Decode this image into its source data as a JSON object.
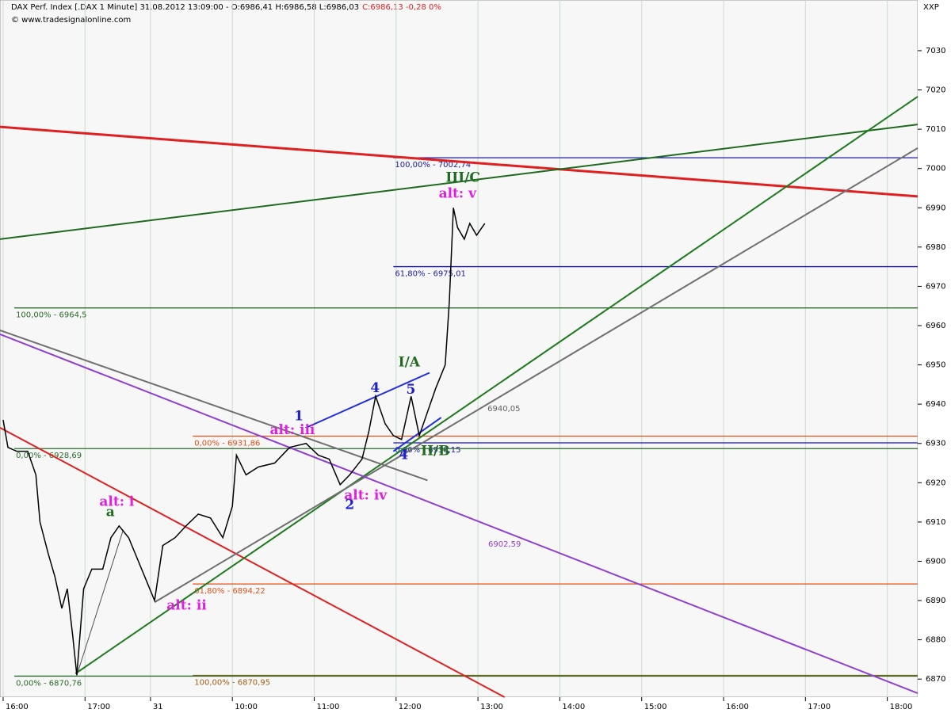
{
  "chart_data": {
    "type": "line",
    "title": "DAX Perf. Index [.DAX 1 Minute] 31.08.2012 13:09:00 - O:6986,41 H:6986,58 L:6986,03",
    "quote_change": "C:6986,13 -0,28 0%",
    "source": "© www.tradesignalonline.com",
    "axis_code": "XXP",
    "color": "#000000",
    "x": [
      0,
      3.5,
      10,
      18,
      24,
      27,
      33,
      38,
      43,
      47,
      51,
      54,
      59,
      65,
      73,
      79,
      85,
      92,
      111,
      117,
      126,
      134,
      143,
      152,
      161,
      168,
      171,
      178,
      187,
      199,
      210,
      222,
      231,
      239,
      247,
      254,
      263,
      268,
      273,
      280,
      286,
      292,
      299,
      305,
      311,
      317,
      324,
      327,
      330,
      333,
      338,
      342,
      347,
      353
    ],
    "values": [
      6936,
      6929,
      6928,
      6928,
      6922,
      6910,
      6902,
      6896,
      6888,
      6893,
      6881,
      6871,
      6893,
      6898,
      6898,
      6906,
      6909,
      6906,
      6890,
      6904,
      6906,
      6909,
      6912,
      6911,
      6906,
      6914,
      6927,
      6922,
      6924,
      6925,
      6929,
      6930,
      6927,
      6926,
      6919.5,
      6922,
      6926,
      6933,
      6942,
      6935,
      6932,
      6931,
      6942,
      6932,
      6938,
      6944,
      6950,
      6966,
      6990,
      6985,
      6982,
      6986,
      6983,
      6986
    ],
    "xlim": [
      -2.3,
      670.3
    ],
    "ylim": [
      6865.4,
      7042.9
    ],
    "xticks": [
      {
        "value": 0,
        "label": "16:00"
      },
      {
        "value": 60,
        "label": "17:00"
      },
      {
        "value": 108,
        "label": "31"
      },
      {
        "value": 168,
        "label": "10:00"
      },
      {
        "value": 228,
        "label": "11:00"
      },
      {
        "value": 288,
        "label": "12:00"
      },
      {
        "value": 348,
        "label": "13:00"
      },
      {
        "value": 408,
        "label": "14:00"
      },
      {
        "value": 468,
        "label": "15:00"
      },
      {
        "value": 528,
        "label": "16:00"
      },
      {
        "value": 588,
        "label": "17:00"
      },
      {
        "value": 648,
        "label": "18:00"
      }
    ],
    "yticks": [
      6870,
      6880,
      6890,
      6900,
      6910,
      6920,
      6930,
      6940,
      6950,
      6960,
      6970,
      6980,
      6990,
      7000,
      7010,
      7020,
      7030
    ],
    "grid": true,
    "levels": [
      {
        "label": "100,00% - 7002,74",
        "value": 7002.74,
        "start": 286,
        "color": "#1a1aa0"
      },
      {
        "label": "61,80% - 6975,01",
        "value": 6975.01,
        "start": 286,
        "color": "#1a1aa0"
      },
      {
        "label": "100,00% - 6964,5",
        "value": 6964.5,
        "start": 8.2,
        "color": "#2a6a2a"
      },
      {
        "label": "0,00% - 6931,86",
        "value": 6931.86,
        "start": 139,
        "color": "#e0501a"
      },
      {
        "label": "0,00% - 6930,15",
        "value": 6930.15,
        "start": 286,
        "color": "#1a1aa0"
      },
      {
        "label": "0,00% - 6928,69",
        "value": 6928.69,
        "start": 8.2,
        "color": "#2a6a2a"
      },
      {
        "label": "61,80% - 6894,22",
        "value": 6894.22,
        "start": 139,
        "color": "#e0501a"
      },
      {
        "label": "100,00% - 6870,95",
        "value": 6870.95,
        "start": 139,
        "color": "#a0601a"
      },
      {
        "label": "0,00% - 6870,76",
        "value": 6870.76,
        "start": 8.2,
        "color": "#2a6a2a"
      }
    ],
    "trendlines": [
      {
        "x": [
          -2.3,
          670.3
        ],
        "values": [
          7010.6,
          6992.9
        ],
        "color": "#e02020"
      },
      {
        "x": [
          -2.3,
          367.5
        ],
        "values": [
          6934.0,
          6865.4
        ],
        "color": "#e02020"
      },
      {
        "x": [
          -2.3,
          670.3
        ],
        "values": [
          6982.0,
          7011.2
        ],
        "color": "#1e6a1e"
      },
      {
        "x": [
          53,
          670.3
        ],
        "values": [
          6871.4,
          7018.3
        ],
        "color": "#1e7a1e"
      },
      {
        "x": [
          -2.3,
          311
        ],
        "values": [
          6958.8,
          6920.6
        ],
        "color": "#707070"
      },
      {
        "x": [
          111.2,
          670.3
        ],
        "values": [
          6889.6,
          7005.2
        ],
        "color": "#707070"
      },
      {
        "x": [
          -2.3,
          670.3
        ],
        "values": [
          6957.8,
          6866.4
        ],
        "color": "#9040d0"
      },
      {
        "x": [
          222,
          312.5
        ],
        "values": [
          6934,
          6948
        ],
        "color": "#2030e0"
      },
      {
        "x": [
          286,
          321
        ],
        "values": [
          6928,
          6936.6
        ],
        "color": "#2030e0"
      },
      {
        "x": [
          54,
          88
        ],
        "values": [
          6871,
          6908
        ],
        "color": "#505050"
      }
    ],
    "annotations": [
      {
        "text": "III/C",
        "x": 337,
        "y": 6997.5,
        "color": "#1e6a1e"
      },
      {
        "text": "alt: v",
        "x": 333,
        "y": 6993.5,
        "color": "#e020e0"
      },
      {
        "text": "I/A",
        "x": 297.6,
        "y": 6950.5,
        "color": "#1e6a1e"
      },
      {
        "text": "4",
        "x": 272.6,
        "y": 6944,
        "color": "#2020d0"
      },
      {
        "text": "5",
        "x": 298.8,
        "y": 6943.6,
        "color": "#2020d0"
      },
      {
        "text": "1",
        "x": 216.7,
        "y": 6936.8,
        "color": "#2020d0"
      },
      {
        "text": "alt: iii",
        "x": 212,
        "y": 6933.3,
        "color": "#e020e0"
      },
      {
        "text": "II/B",
        "x": 316.8,
        "y": 6927.9,
        "color": "#1e6a1e"
      },
      {
        "text": "4",
        "x": 293.5,
        "y": 6926.9,
        "color": "#2020d0"
      },
      {
        "text": "2",
        "x": 254,
        "y": 6914.2,
        "color": "#2020d0"
      },
      {
        "text": "alt: iv",
        "x": 265.6,
        "y": 6916.6,
        "color": "#e020e0"
      },
      {
        "text": "alt: i",
        "x": 83.3,
        "y": 6915,
        "color": "#e020e0"
      },
      {
        "text": "a",
        "x": 78.6,
        "y": 6912.4,
        "color": "#1e6a1e"
      },
      {
        "text": "alt: ii",
        "x": 134.5,
        "y": 6888.6,
        "color": "#e020e0"
      },
      {
        "text": "6940,05",
        "x": 367,
        "y": 6938.8,
        "color": "#606060",
        "small": true
      },
      {
        "text": "6902,59",
        "x": 367.5,
        "y": 6904.3,
        "color": "#9040d0",
        "small": true
      }
    ]
  }
}
